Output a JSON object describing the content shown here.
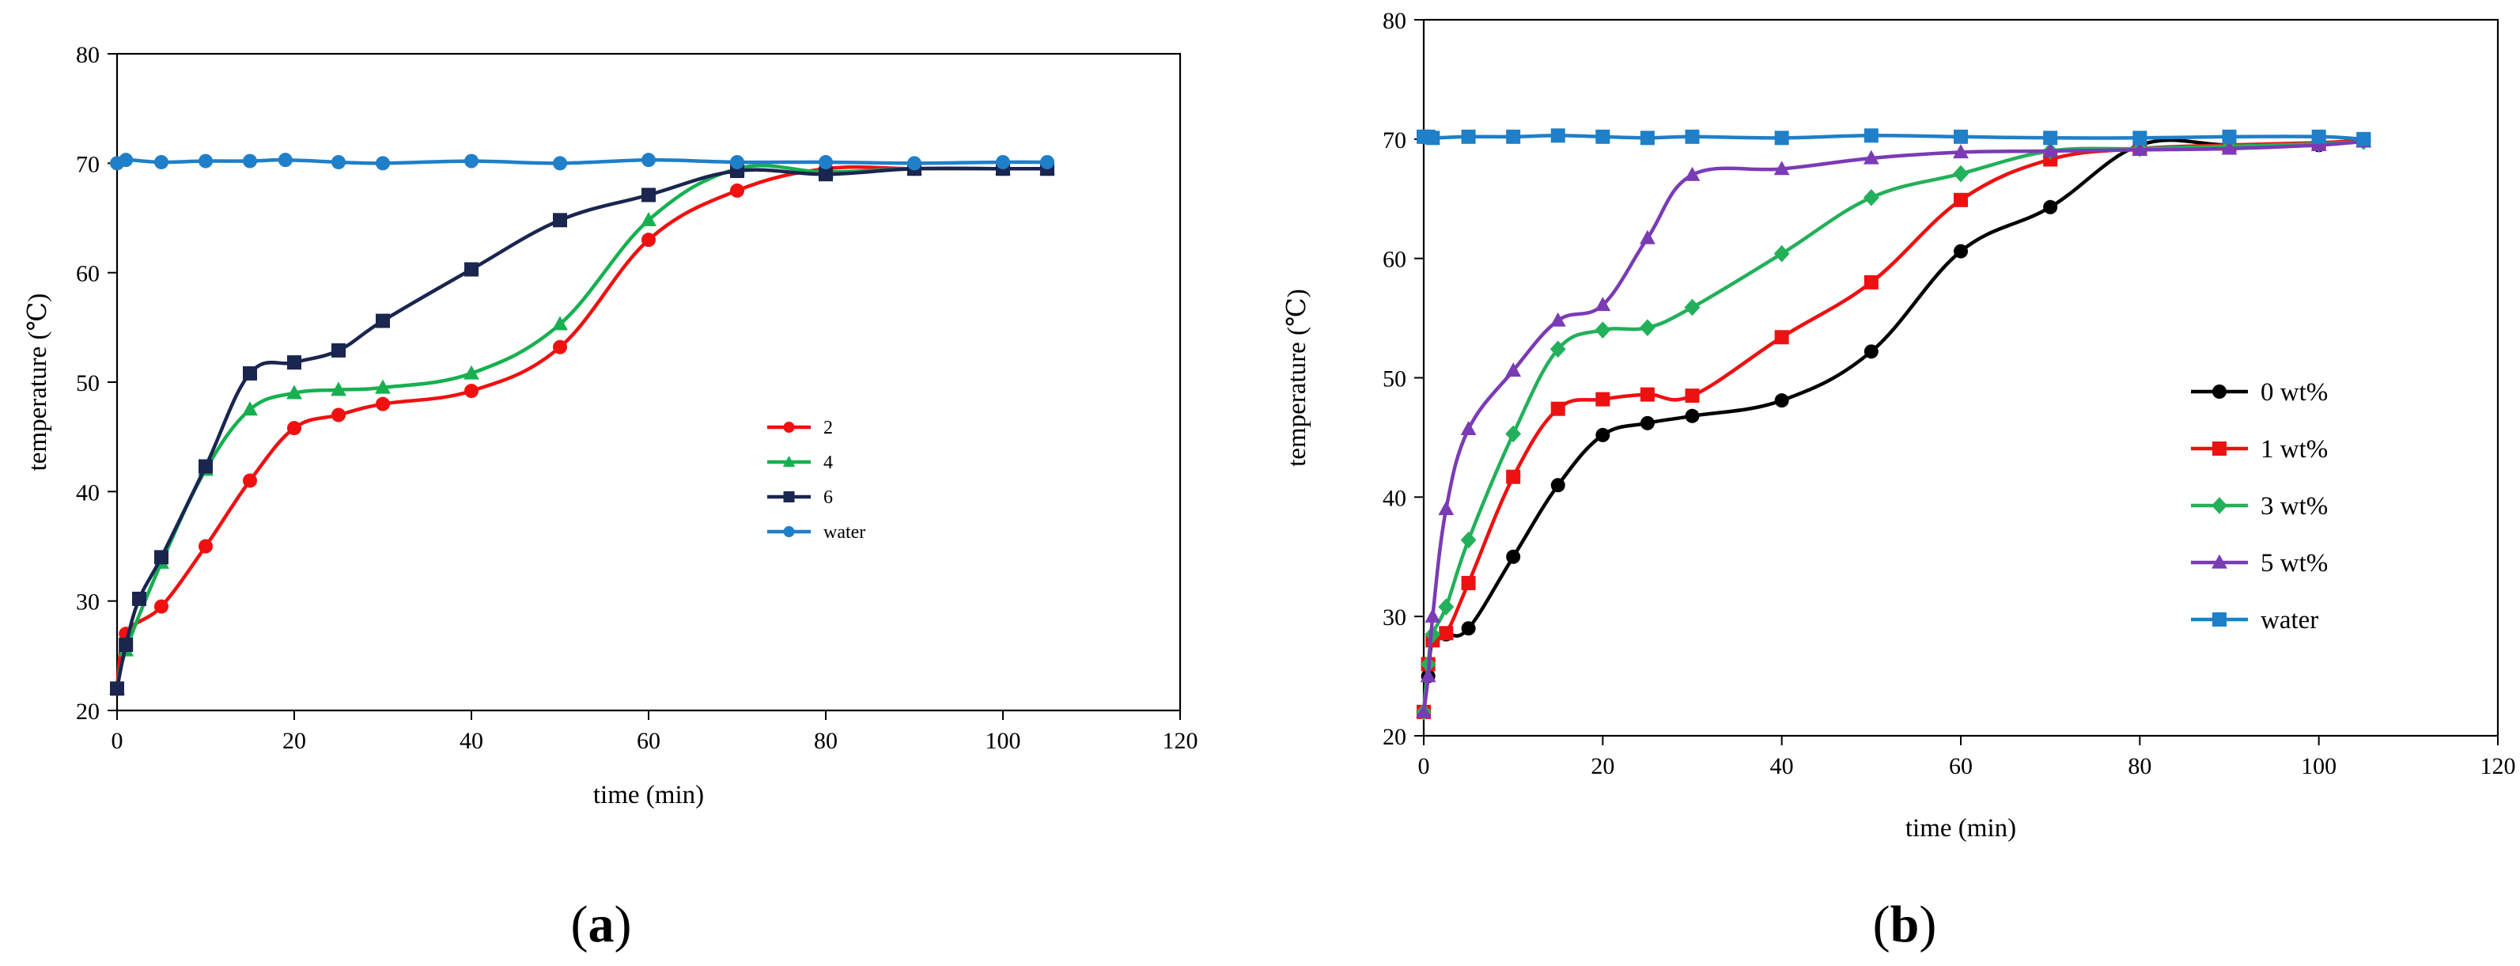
{
  "chart_data": [
    {
      "id": "a",
      "type": "line",
      "panel_label": "a",
      "title": "",
      "xlabel": "time (min)",
      "ylabel": "temperature (℃)",
      "xlim": [
        0,
        120
      ],
      "ylim": [
        20,
        80
      ],
      "xticks": [
        0,
        20,
        40,
        60,
        80,
        100,
        120
      ],
      "yticks": [
        20,
        30,
        40,
        50,
        60,
        70,
        80
      ],
      "grid": false,
      "legend_position": "center-right",
      "series": [
        {
          "name": "2",
          "color": "#f01010",
          "marker": "circle",
          "x": [
            0,
            1,
            5,
            10,
            15,
            20,
            25,
            30,
            40,
            50,
            60,
            70,
            80,
            90,
            100,
            105
          ],
          "y": [
            22,
            27,
            29.5,
            35,
            41,
            45.8,
            47,
            48,
            49.2,
            53.2,
            63,
            67.5,
            69.5,
            69.5,
            69.5,
            69.5
          ]
        },
        {
          "name": "4",
          "color": "#16b050",
          "marker": "triangle",
          "x": [
            0,
            1,
            5,
            10,
            15,
            20,
            25,
            30,
            40,
            50,
            60,
            70,
            80,
            90,
            100,
            105
          ],
          "y": [
            22,
            25.5,
            33.5,
            42,
            47.5,
            49,
            49.3,
            49.5,
            50.8,
            55.3,
            64.8,
            69.5,
            69.2,
            69.5,
            69.5,
            69.5
          ]
        },
        {
          "name": "6",
          "color": "#1a2550",
          "marker": "square",
          "x": [
            0,
            1,
            2.5,
            5,
            10,
            15,
            20,
            25,
            30,
            40,
            50,
            60,
            70,
            80,
            90,
            100,
            105
          ],
          "y": [
            22,
            26,
            30.2,
            34,
            42.3,
            50.8,
            51.8,
            52.9,
            55.6,
            60.3,
            64.8,
            67.1,
            69.3,
            69,
            69.5,
            69.5,
            69.5
          ]
        },
        {
          "name": "water",
          "color": "#1f7fc8",
          "marker": "circle",
          "x": [
            0,
            1,
            5,
            10,
            15,
            19,
            25,
            30,
            40,
            50,
            60,
            70,
            80,
            90,
            100,
            105
          ],
          "y": [
            70,
            70.3,
            70.1,
            70.2,
            70.2,
            70.3,
            70.1,
            70,
            70.2,
            70,
            70.3,
            70.1,
            70.1,
            70,
            70.1,
            70.1
          ]
        }
      ]
    },
    {
      "id": "b",
      "type": "line",
      "panel_label": "b",
      "title": "",
      "xlabel": "time (min)",
      "ylabel": "temperature (℃)",
      "xlim": [
        0,
        120
      ],
      "ylim": [
        20,
        80
      ],
      "xticks": [
        0,
        20,
        40,
        60,
        80,
        100,
        120
      ],
      "yticks": [
        20,
        30,
        40,
        50,
        60,
        70,
        80
      ],
      "grid": false,
      "legend_position": "right",
      "series": [
        {
          "name": "0 wt%",
          "color": "#000000",
          "marker": "circle",
          "x": [
            0,
            0.5,
            1,
            2.5,
            5,
            10,
            15,
            20,
            25,
            30,
            40,
            50,
            60,
            70,
            80,
            90,
            100,
            105
          ],
          "y": [
            22,
            25,
            28,
            28.5,
            29,
            35,
            41,
            45.2,
            46.2,
            46.8,
            48.1,
            52.2,
            60.6,
            64.3,
            69.5,
            69.5,
            69.5,
            70
          ]
        },
        {
          "name": "1 wt%",
          "color": "#ee1111",
          "marker": "square",
          "x": [
            0,
            0.5,
            1,
            2.5,
            5,
            10,
            15,
            20,
            25,
            30,
            40,
            50,
            60,
            70,
            80,
            90,
            100,
            105
          ],
          "y": [
            22,
            26,
            28,
            28.6,
            32.8,
            41.7,
            47.4,
            48.2,
            48.6,
            48.5,
            53.4,
            58,
            64.9,
            68.3,
            69.2,
            69.5,
            69.7,
            69.9
          ]
        },
        {
          "name": "3 wt%",
          "color": "#22b05a",
          "marker": "diamond",
          "x": [
            0,
            0.5,
            1,
            2.5,
            5,
            10,
            15,
            20,
            25,
            30,
            40,
            50,
            60,
            70,
            80,
            90,
            100,
            105
          ],
          "y": [
            22,
            26,
            28.5,
            30.8,
            36.4,
            45.3,
            52.4,
            54,
            54.2,
            55.9,
            60.4,
            65.1,
            67.1,
            69,
            69.2,
            69.4,
            69.6,
            69.8
          ]
        },
        {
          "name": "5 wt%",
          "color": "#7a3bb5",
          "marker": "triangle",
          "x": [
            0,
            0.5,
            1,
            2.5,
            5,
            10,
            15,
            20,
            25,
            30,
            40,
            50,
            60,
            70,
            80,
            90,
            100,
            105
          ],
          "y": [
            22,
            25,
            30,
            39,
            45.7,
            50.6,
            54.8,
            56.1,
            61.7,
            67,
            67.5,
            68.4,
            68.9,
            69,
            69.1,
            69.2,
            69.5,
            69.8
          ]
        },
        {
          "name": "water",
          "color": "#1f7fc8",
          "marker": "square",
          "x": [
            0,
            0.5,
            1,
            5,
            10,
            15,
            20,
            25,
            30,
            40,
            50,
            60,
            70,
            80,
            90,
            100,
            105
          ],
          "y": [
            70.2,
            70.2,
            70.1,
            70.2,
            70.2,
            70.3,
            70.2,
            70.1,
            70.2,
            70.1,
            70.3,
            70.2,
            70.1,
            70.1,
            70.2,
            70.2,
            70
          ]
        }
      ]
    }
  ]
}
